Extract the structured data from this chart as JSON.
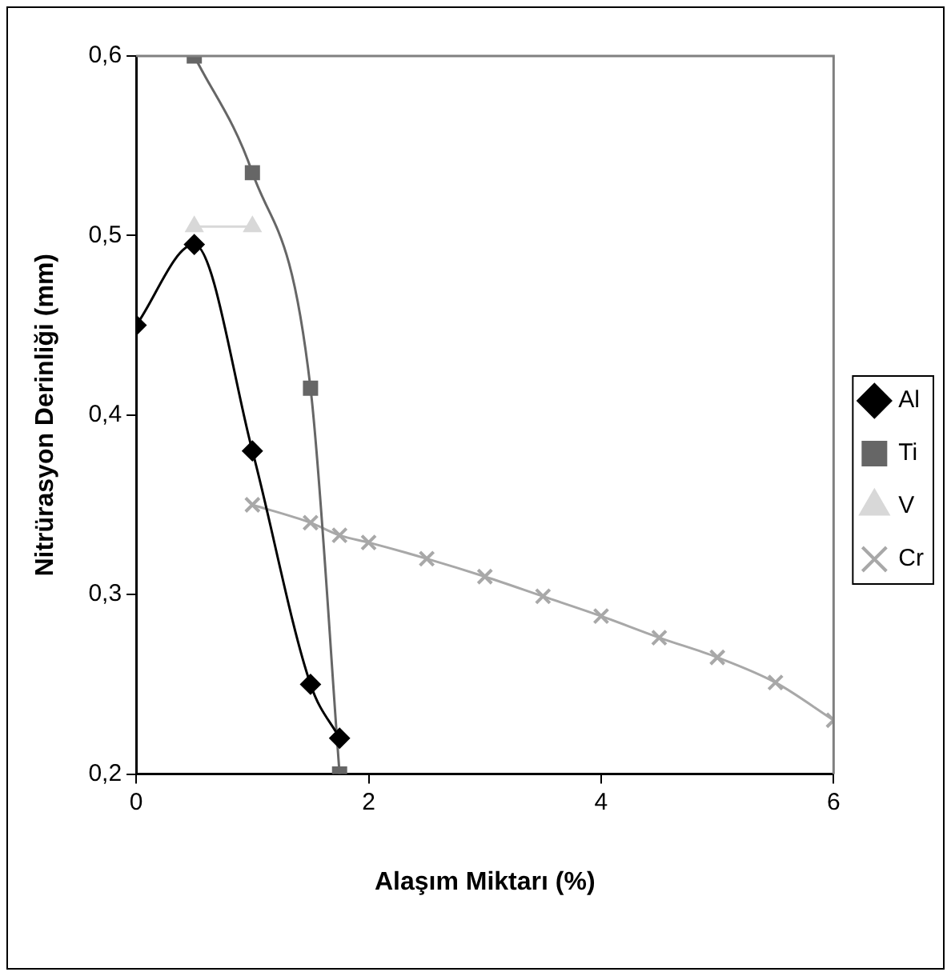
{
  "chart_data": {
    "type": "line",
    "xlabel": "Alaşım Miktarı (%)",
    "ylabel": "Nitrürasyon Derinliği (mm)",
    "xlim": [
      0,
      6
    ],
    "xticks": [
      0,
      2,
      4,
      6
    ],
    "ylim": [
      0.2,
      0.6
    ],
    "yticks": [
      {
        "value": 0.2,
        "label": "0,2"
      },
      {
        "value": 0.3,
        "label": "0,3"
      },
      {
        "value": 0.4,
        "label": "0,4"
      },
      {
        "value": 0.5,
        "label": "0,5"
      },
      {
        "value": 0.6,
        "label": "0,6"
      }
    ],
    "grid": false,
    "legend": "right",
    "series": [
      {
        "name": "Al",
        "color": "#000000",
        "marker": "diamond",
        "x": [
          0,
          0.5,
          1,
          1.5,
          1.75
        ],
        "values": [
          0.45,
          0.495,
          0.38,
          0.25,
          0.22
        ]
      },
      {
        "name": "Ti",
        "color": "#666666",
        "marker": "square",
        "x": [
          0.5,
          1,
          1.5,
          1.75
        ],
        "values": [
          0.6,
          0.535,
          0.415,
          0.2
        ]
      },
      {
        "name": "V",
        "color": "#d8d8d8",
        "marker": "triangle",
        "x": [
          0.5,
          1
        ],
        "values": [
          0.505,
          0.505
        ]
      },
      {
        "name": "Cr",
        "color": "#a8a8a8",
        "marker": "cross",
        "x": [
          1,
          1.5,
          1.75,
          2,
          2.5,
          3,
          3.5,
          4,
          4.5,
          5,
          5.5,
          6
        ],
        "values": [
          0.35,
          0.34,
          0.333,
          0.329,
          0.32,
          0.31,
          0.299,
          0.288,
          0.276,
          0.265,
          0.251,
          0.23
        ]
      }
    ]
  }
}
